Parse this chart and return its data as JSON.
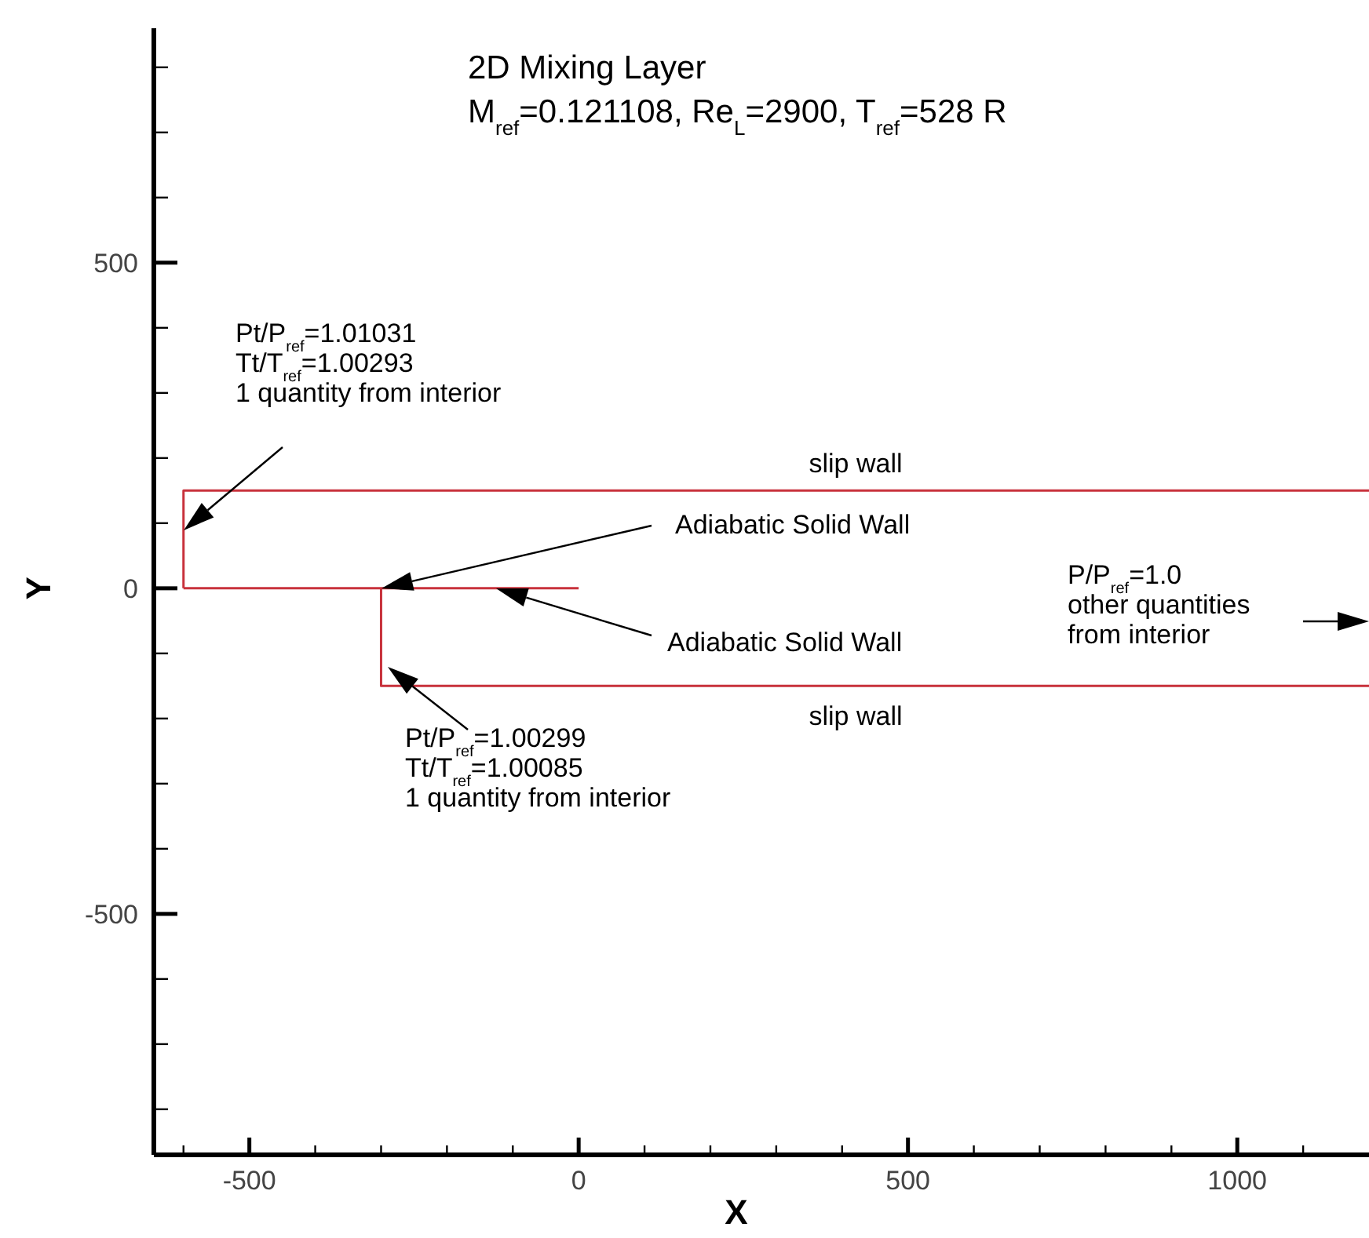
{
  "chart_data": {
    "type": "line",
    "title": "2D Mixing Layer",
    "subtitle": "M$_{ref}$=0.121108, Re$_{L}$=2900, T$_{ref}$=528 R",
    "xlabel": "X",
    "ylabel": "Y",
    "xlim": [
      -645,
      1200
    ],
    "ylim": [
      -870,
      860
    ],
    "xticks": [
      {
        "value": -600,
        "label": null
      },
      -500,
      {
        "value": -400,
        "label": null
      },
      {
        "value": -300,
        "label": null
      },
      {
        "value": -200,
        "label": null
      },
      {
        "value": -100,
        "label": null
      },
      0,
      {
        "value": 100,
        "label": null
      },
      {
        "value": 200,
        "label": null
      },
      {
        "value": 300,
        "label": null
      },
      {
        "value": 400,
        "label": null
      },
      500,
      {
        "value": 600,
        "label": null
      },
      {
        "value": 700,
        "label": null
      },
      {
        "value": 800,
        "label": null
      },
      {
        "value": 900,
        "label": null
      },
      1000,
      {
        "value": 1100,
        "label": null
      }
    ],
    "yticks": [
      {
        "value": -800,
        "label": null
      },
      {
        "value": -700,
        "label": null
      },
      {
        "value": -600,
        "label": null
      },
      -500,
      {
        "value": -400,
        "label": null
      },
      {
        "value": -300,
        "label": null
      },
      {
        "value": -200,
        "label": null
      },
      {
        "value": -100,
        "label": null
      },
      0,
      {
        "value": 100,
        "label": null
      },
      {
        "value": 200,
        "label": null
      },
      {
        "value": 300,
        "label": null
      },
      {
        "value": 400,
        "label": null
      },
      500,
      {
        "value": 600,
        "label": null
      },
      {
        "value": 700,
        "label": null
      },
      {
        "value": 800,
        "label": null
      }
    ],
    "marker": "none",
    "line_style": "solid",
    "series": [
      {
        "color": "#c8323c",
        "x": [
          -600,
          -600,
          1200
        ],
        "values": [
          0,
          150,
          150
        ]
      },
      {
        "color": "#c8323c",
        "x": [
          -600,
          0
        ],
        "values": [
          0,
          0
        ]
      },
      {
        "color": "#c8323c",
        "x": [
          -300,
          -300,
          1200
        ],
        "values": [
          0,
          -150,
          -150
        ]
      }
    ],
    "annotations": [
      "Pt/P$_{ref}$=1.01031\nTt/T$_{ref}$=1.00293\n1 quantity from interior",
      "slip wall",
      "Adiabatic Solid Wall",
      "Adiabatic Solid Wall",
      "slip wall",
      "Pt/P$_{ref}$=1.00299\nTt/T$_{ref}$=1.00085\n1 quantity from interior",
      "P/P$_{ref}$=1.0\nother quantities\nfrom interior"
    ]
  }
}
